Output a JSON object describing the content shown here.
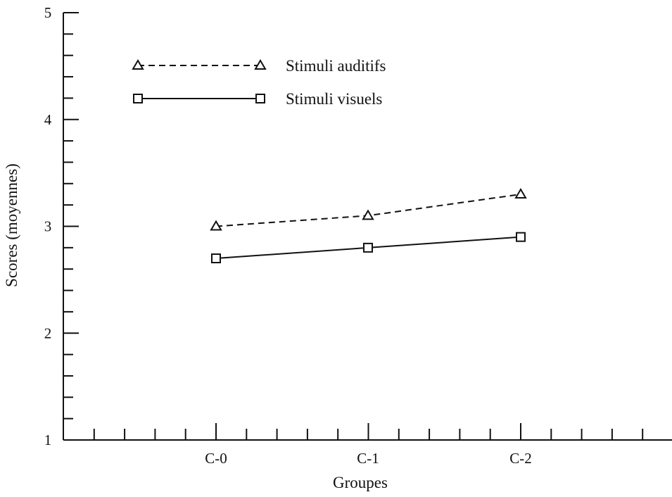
{
  "chart_data": {
    "type": "line",
    "title": "",
    "xlabel": "Groupes",
    "ylabel": "Scores (moyennes)",
    "categories": [
      "C-0",
      "C-1",
      "C-2"
    ],
    "ylim": [
      1,
      5
    ],
    "yticks": [
      "1",
      "2",
      "3",
      "4",
      "5"
    ],
    "grid": false,
    "legend_position": "top-left",
    "series": [
      {
        "name": "Stimuli auditifs",
        "values": [
          3.0,
          3.1,
          3.3
        ],
        "marker": "triangle",
        "line_style": "dashed",
        "color": "#111111"
      },
      {
        "name": "Stimuli visuels",
        "values": [
          2.7,
          2.8,
          2.9
        ],
        "marker": "square",
        "line_style": "solid",
        "color": "#111111"
      }
    ]
  }
}
